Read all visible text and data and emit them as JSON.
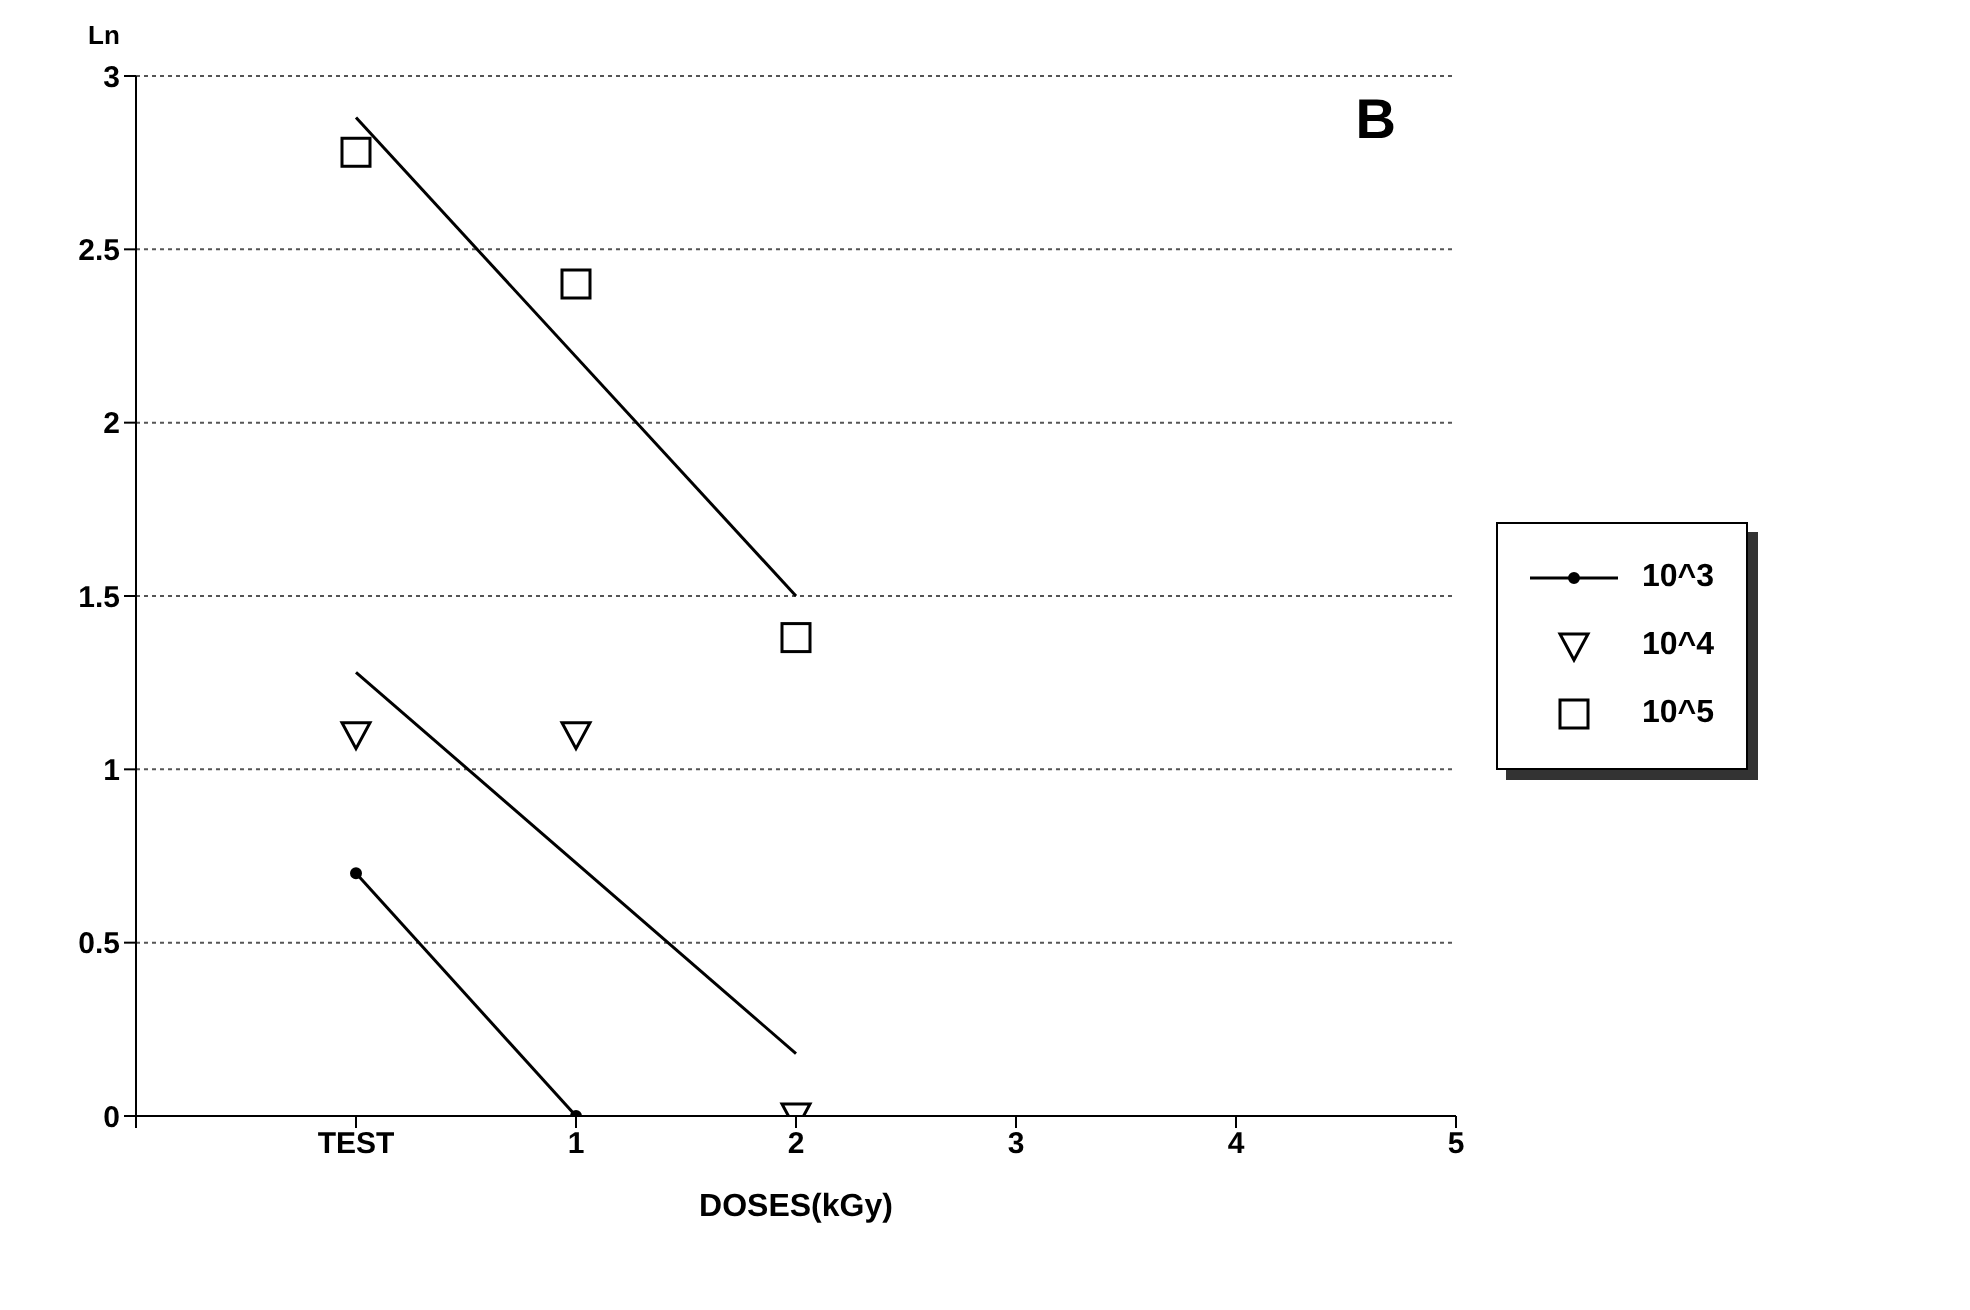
{
  "chart_data": {
    "type": "scatter",
    "xlabel": "DOSES(kGy)",
    "ylabel": "Ln",
    "annotations": [
      "B"
    ],
    "xlim": [
      -1,
      5
    ],
    "xticks": [
      {
        "value": -1,
        "label": null
      },
      {
        "value": 0,
        "label": "TEST"
      },
      1,
      2,
      3,
      4,
      5
    ],
    "ylim": [
      0,
      3
    ],
    "yticks": [
      0,
      0.5,
      1,
      1.5,
      2,
      2.5,
      3
    ],
    "grid": "y",
    "legend": "right",
    "series": [
      {
        "name": "10^3",
        "type": "line",
        "marker": "circle",
        "color": "#000000",
        "x": [
          0,
          1
        ],
        "values": [
          0.7,
          0
        ]
      },
      {
        "name": "10^4",
        "marker": "triangle",
        "color": "#000000",
        "x": [
          0,
          1,
          2
        ],
        "values": [
          1.1,
          1.1,
          0
        ]
      },
      {
        "name": "10^5",
        "marker": "square",
        "color": "#000000",
        "x": [
          0,
          1,
          2
        ],
        "values": [
          2.78,
          2.4,
          1.38
        ]
      },
      {
        "type": "line",
        "marker": "none",
        "color": "#000000",
        "x": [
          0,
          2
        ],
        "values": [
          1.28,
          0.18
        ]
      },
      {
        "type": "line",
        "marker": "none",
        "color": "#000000",
        "x": [
          0,
          2
        ],
        "values": [
          2.88,
          1.5
        ]
      }
    ]
  }
}
